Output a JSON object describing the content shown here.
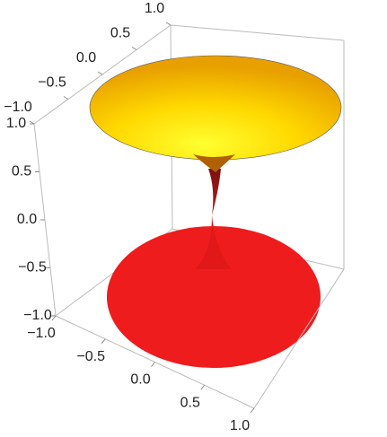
{
  "chart_data": {
    "type": "surface3d",
    "xlim": [
      -1,
      1
    ],
    "ylim": [
      -1,
      1
    ],
    "zlim": [
      -1,
      1
    ],
    "xticks": [
      {
        "value": -1,
        "label": "−1.0"
      },
      {
        "value": -0.5,
        "label": "−0.5"
      },
      {
        "value": 0,
        "label": "0.0"
      },
      {
        "value": 0.5,
        "label": "0.5"
      },
      {
        "value": 1,
        "label": "1.0"
      }
    ],
    "yticks": [
      {
        "value": -1,
        "label": "−1.0"
      },
      {
        "value": -0.5,
        "label": "−0.5"
      },
      {
        "value": 0,
        "label": "0.0"
      },
      {
        "value": 0.5,
        "label": "0.5"
      },
      {
        "value": 1,
        "label": "1.0"
      }
    ],
    "zticks": [
      {
        "value": -1,
        "label": "−1.0"
      },
      {
        "value": -0.5,
        "label": "−0.5"
      },
      {
        "value": 0,
        "label": "0.0"
      },
      {
        "value": 0.5,
        "label": "0.5"
      },
      {
        "value": 1,
        "label": "1.0"
      }
    ]
  }
}
